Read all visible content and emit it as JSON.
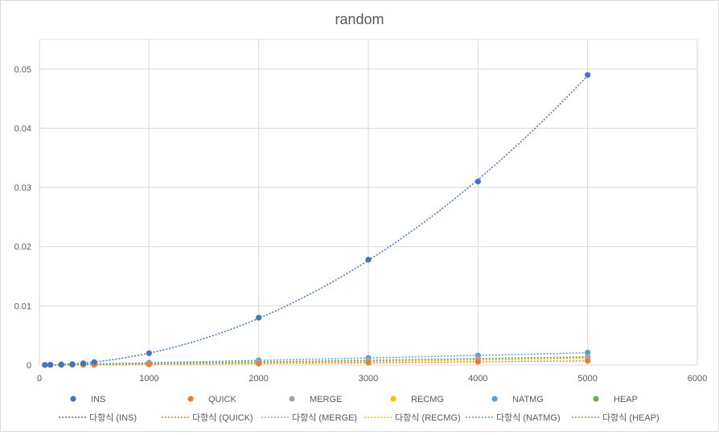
{
  "chart_data": {
    "type": "scatter",
    "title": "random",
    "xlabel": "",
    "ylabel": "",
    "xlim": [
      0,
      6000
    ],
    "ylim": [
      0,
      0.055
    ],
    "x_ticks": [
      "0",
      "1000",
      "2000",
      "3000",
      "4000",
      "5000",
      "6000"
    ],
    "y_ticks": [
      "0",
      "0.01",
      "0.02",
      "0.03",
      "0.04",
      "0.05"
    ],
    "grid": true,
    "legend_position": "bottom",
    "series": [
      {
        "name": "INS",
        "color": "#4472c4",
        "x": [
          50,
          100,
          200,
          300,
          400,
          500,
          1000,
          2000,
          3000,
          4000,
          5000
        ],
        "values": [
          2e-05,
          5e-05,
          0.0001,
          0.00015,
          0.0003,
          0.0005,
          0.002,
          0.008,
          0.0178,
          0.031,
          0.049
        ]
      },
      {
        "name": "QUICK",
        "color": "#ed7d31",
        "x": [
          50,
          100,
          200,
          300,
          400,
          500,
          1000,
          2000,
          3000,
          4000,
          5000
        ],
        "values": [
          1e-05,
          1e-05,
          2e-05,
          3e-05,
          4e-05,
          5e-05,
          0.0001,
          0.00025,
          0.0004,
          0.00055,
          0.0007
        ]
      },
      {
        "name": "MERGE",
        "color": "#a5a5a5",
        "x": [
          50,
          100,
          200,
          300,
          400,
          500,
          1000,
          2000,
          3000,
          4000,
          5000
        ],
        "values": [
          1e-05,
          2e-05,
          4e-05,
          6e-05,
          8e-05,
          0.0001,
          0.00025,
          0.0005,
          0.0008,
          0.0011,
          0.0014
        ]
      },
      {
        "name": "RECMG",
        "color": "#ffc000",
        "x": [
          50,
          100,
          200,
          300,
          400,
          500,
          1000,
          2000,
          3000,
          4000,
          5000
        ],
        "values": [
          1e-05,
          2e-05,
          3e-05,
          5e-05,
          7e-05,
          9e-05,
          0.0002,
          0.0004,
          0.0006,
          0.0009,
          0.0011
        ]
      },
      {
        "name": "NATMG",
        "color": "#5b9bd5",
        "x": [
          50,
          100,
          200,
          300,
          400,
          500,
          1000,
          2000,
          3000,
          4000,
          5000
        ],
        "values": [
          2e-05,
          4e-05,
          8e-05,
          0.00012,
          0.00016,
          0.0002,
          0.0004,
          0.0008,
          0.0012,
          0.0016,
          0.0021
        ]
      },
      {
        "name": "HEAP",
        "color": "#70ad47",
        "x": [
          50,
          100,
          200,
          300,
          400,
          500,
          1000,
          2000,
          3000,
          4000,
          5000
        ],
        "values": [
          1e-05,
          2e-05,
          4e-05,
          6e-05,
          8e-05,
          0.0001,
          0.0002,
          0.0005,
          0.0008,
          0.0011,
          0.0013
        ]
      }
    ],
    "trendlines": [
      {
        "label": "다항식 (INS)",
        "series": "INS",
        "color": "#4472c4"
      },
      {
        "label": "다항식 (QUICK)",
        "series": "QUICK",
        "color": "#ed7d31"
      },
      {
        "label": "다항식 (MERGE)",
        "series": "MERGE",
        "color": "#a5a5a5"
      },
      {
        "label": "다항식 (RECMG)",
        "series": "RECMG",
        "color": "#ffc000"
      },
      {
        "label": "다항식 (NATMG)",
        "series": "NATMG",
        "color": "#5b9bd5"
      },
      {
        "label": "다항식 (HEAP)",
        "series": "HEAP",
        "color": "#70ad47"
      }
    ]
  }
}
